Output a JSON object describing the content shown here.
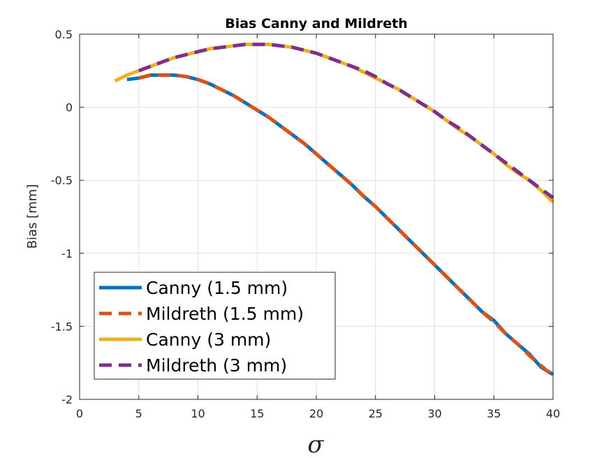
{
  "chart_data": {
    "type": "line",
    "title": "Bias Canny and Mildreth",
    "xlabel": "σ",
    "ylabel": "Bias [mm]",
    "xlim": [
      0,
      40
    ],
    "ylim": [
      -2,
      0.5
    ],
    "xticks": [
      "0",
      "5",
      "10",
      "15",
      "20",
      "25",
      "30",
      "35",
      "40"
    ],
    "yticks": [
      "0.5",
      "0",
      "-0.5",
      "-1",
      "-1.5",
      "-2"
    ],
    "grid": true,
    "legend_position": "bottom-left",
    "series": [
      {
        "name": "Canny (1.5 mm)",
        "color": "#0072BD",
        "dash": "solid",
        "points": [
          [
            4,
            0.19
          ],
          [
            5,
            0.2
          ],
          [
            6,
            0.22
          ],
          [
            7,
            0.22
          ],
          [
            8,
            0.22
          ],
          [
            9,
            0.21
          ],
          [
            10,
            0.19
          ],
          [
            11,
            0.16
          ],
          [
            12,
            0.12
          ],
          [
            13,
            0.08
          ],
          [
            14,
            0.03
          ],
          [
            15,
            -0.02
          ],
          [
            16,
            -0.07
          ],
          [
            17,
            -0.13
          ],
          [
            18,
            -0.19
          ],
          [
            19,
            -0.25
          ],
          [
            20,
            -0.32
          ],
          [
            21,
            -0.39
          ],
          [
            22,
            -0.46
          ],
          [
            23,
            -0.53
          ],
          [
            24,
            -0.61
          ],
          [
            25,
            -0.68
          ],
          [
            26,
            -0.76
          ],
          [
            27,
            -0.84
          ],
          [
            28,
            -0.92
          ],
          [
            29,
            -1.0
          ],
          [
            30,
            -1.08
          ],
          [
            31,
            -1.16
          ],
          [
            32,
            -1.24
          ],
          [
            33,
            -1.32
          ],
          [
            34,
            -1.4
          ],
          [
            35,
            -1.46
          ],
          [
            36,
            -1.55
          ],
          [
            37,
            -1.62
          ],
          [
            38,
            -1.69
          ],
          [
            39,
            -1.78
          ],
          [
            40,
            -1.83
          ]
        ]
      },
      {
        "name": "Mildreth (1.5 mm)",
        "color": "#D95319",
        "dash": "dashed",
        "points": [
          [
            5,
            0.2
          ],
          [
            6,
            0.22
          ],
          [
            7,
            0.22
          ],
          [
            8,
            0.22
          ],
          [
            9,
            0.21
          ],
          [
            10,
            0.19
          ],
          [
            11,
            0.16
          ],
          [
            12,
            0.12
          ],
          [
            13,
            0.08
          ],
          [
            14,
            0.03
          ],
          [
            15,
            -0.02
          ],
          [
            16,
            -0.07
          ],
          [
            17,
            -0.13
          ],
          [
            18,
            -0.19
          ],
          [
            19,
            -0.25
          ],
          [
            20,
            -0.32
          ],
          [
            21,
            -0.39
          ],
          [
            22,
            -0.46
          ],
          [
            23,
            -0.53
          ],
          [
            24,
            -0.61
          ],
          [
            25,
            -0.68
          ],
          [
            26,
            -0.76
          ],
          [
            27,
            -0.84
          ],
          [
            28,
            -0.92
          ],
          [
            29,
            -1.0
          ],
          [
            30,
            -1.08
          ],
          [
            31,
            -1.16
          ],
          [
            32,
            -1.24
          ],
          [
            33,
            -1.32
          ],
          [
            34,
            -1.4
          ],
          [
            35,
            -1.47
          ],
          [
            36,
            -1.55
          ],
          [
            37,
            -1.62
          ],
          [
            38,
            -1.7
          ],
          [
            39,
            -1.77
          ],
          [
            40,
            -1.84
          ]
        ]
      },
      {
        "name": "Canny (3 mm)",
        "color": "#EDB120",
        "dash": "solid",
        "points": [
          [
            3,
            0.18
          ],
          [
            4,
            0.22
          ],
          [
            5,
            0.25
          ],
          [
            6,
            0.28
          ],
          [
            7,
            0.31
          ],
          [
            8,
            0.34
          ],
          [
            9,
            0.36
          ],
          [
            10,
            0.38
          ],
          [
            11,
            0.4
          ],
          [
            12,
            0.41
          ],
          [
            13,
            0.42
          ],
          [
            14,
            0.43
          ],
          [
            15,
            0.43
          ],
          [
            16,
            0.43
          ],
          [
            17,
            0.42
          ],
          [
            18,
            0.41
          ],
          [
            19,
            0.39
          ],
          [
            20,
            0.37
          ],
          [
            21,
            0.34
          ],
          [
            22,
            0.31
          ],
          [
            23,
            0.28
          ],
          [
            24,
            0.24
          ],
          [
            25,
            0.2
          ],
          [
            26,
            0.16
          ],
          [
            27,
            0.12
          ],
          [
            28,
            0.07
          ],
          [
            29,
            0.02
          ],
          [
            30,
            -0.03
          ],
          [
            31,
            -0.09
          ],
          [
            32,
            -0.15
          ],
          [
            33,
            -0.2
          ],
          [
            34,
            -0.26
          ],
          [
            35,
            -0.32
          ],
          [
            36,
            -0.39
          ],
          [
            37,
            -0.45
          ],
          [
            38,
            -0.5
          ],
          [
            39,
            -0.57
          ],
          [
            40,
            -0.65
          ]
        ]
      },
      {
        "name": "Mildreth (3 mm)",
        "color": "#7E2F8E",
        "dash": "dashed",
        "points": [
          [
            5,
            0.25
          ],
          [
            6,
            0.28
          ],
          [
            7,
            0.31
          ],
          [
            8,
            0.34
          ],
          [
            9,
            0.36
          ],
          [
            10,
            0.38
          ],
          [
            11,
            0.4
          ],
          [
            12,
            0.41
          ],
          [
            13,
            0.42
          ],
          [
            14,
            0.43
          ],
          [
            15,
            0.43
          ],
          [
            16,
            0.43
          ],
          [
            17,
            0.42
          ],
          [
            18,
            0.41
          ],
          [
            19,
            0.39
          ],
          [
            20,
            0.37
          ],
          [
            21,
            0.34
          ],
          [
            22,
            0.31
          ],
          [
            23,
            0.28
          ],
          [
            24,
            0.25
          ],
          [
            25,
            0.21
          ],
          [
            26,
            0.16
          ],
          [
            27,
            0.12
          ],
          [
            28,
            0.07
          ],
          [
            29,
            0.02
          ],
          [
            30,
            -0.03
          ],
          [
            31,
            -0.09
          ],
          [
            32,
            -0.14
          ],
          [
            33,
            -0.2
          ],
          [
            34,
            -0.26
          ],
          [
            35,
            -0.32
          ],
          [
            36,
            -0.38
          ],
          [
            37,
            -0.44
          ],
          [
            38,
            -0.5
          ],
          [
            39,
            -0.56
          ],
          [
            40,
            -0.62
          ]
        ]
      }
    ]
  }
}
